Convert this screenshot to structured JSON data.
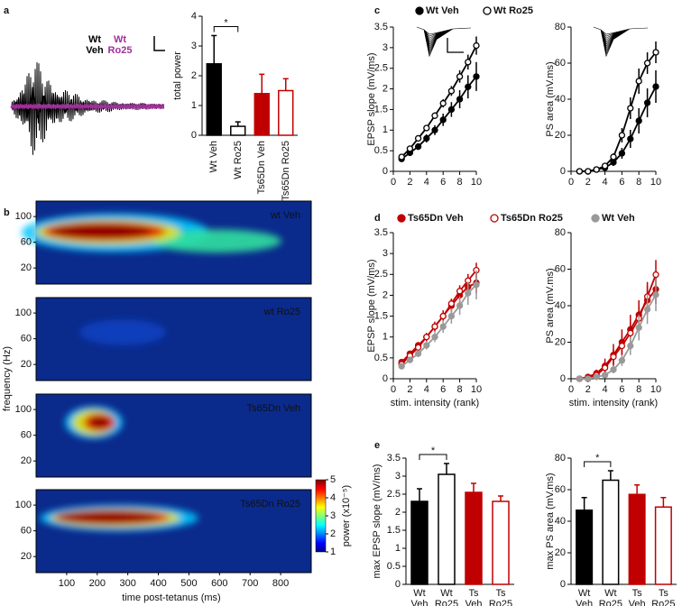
{
  "panel_labels": [
    "a",
    "b",
    "c",
    "d",
    "e"
  ],
  "chart_data": [
    {
      "type": "trace",
      "series": [
        {
          "name": "Wt Veh",
          "color": "#000000"
        },
        {
          "name": "Wt Ro25",
          "color": "#a0309a"
        }
      ]
    },
    {
      "type": "bar",
      "ylabel": "total power",
      "categories": [
        "Wt Veh",
        "Wt Ro25",
        "Ts65Dn Veh",
        "Ts65Dn Ro25"
      ],
      "values": [
        2.4,
        0.3,
        1.4,
        1.5
      ],
      "errors": [
        0.95,
        0.15,
        0.65,
        0.4
      ],
      "colors": [
        "#000000",
        "#000000",
        "#c00000",
        "#c00000"
      ],
      "fills": [
        "#000000",
        "#ffffff",
        "#c00000",
        "#ffffff"
      ],
      "ylim": [
        0,
        4
      ],
      "yticks": [
        0,
        1,
        2,
        3,
        4
      ],
      "annotation": "*"
    },
    {
      "type": "heatmap",
      "panel_titles": [
        "wt Veh",
        "wt Ro25",
        "Ts65Dn Veh",
        "Ts65Dn Ro25"
      ],
      "xlabel": "time post-tetanus (ms)",
      "ylabel": "frequency (Hz)",
      "xlim": [
        0,
        900
      ],
      "xticks": [
        100,
        200,
        300,
        400,
        500,
        600,
        700,
        800
      ],
      "ylim": [
        -5,
        124
      ],
      "yticks": [
        20,
        60,
        100
      ],
      "colorbar": {
        "label": "power (x10⁻⁵)",
        "lim": [
          1,
          5
        ],
        "ticks": [
          1,
          2,
          3,
          4,
          5
        ]
      }
    },
    {
      "type": "line",
      "ylabel": "EPSP slope (mV/ms)",
      "x": [
        1,
        2,
        3,
        4,
        5,
        6,
        7,
        8,
        9,
        10
      ],
      "xlim": [
        0,
        10
      ],
      "xticks": [
        0,
        2,
        4,
        6,
        8,
        10
      ],
      "ylim": [
        0,
        3.5
      ],
      "yticks": [
        0,
        0.5,
        1,
        1.5,
        2,
        2.5,
        3,
        3.5
      ],
      "series": [
        {
          "name": "Wt Veh",
          "color": "#000000",
          "marker": "filled",
          "values": [
            0.3,
            0.45,
            0.6,
            0.8,
            1.0,
            1.25,
            1.5,
            1.75,
            2.05,
            2.3
          ],
          "errors": [
            0.05,
            0.06,
            0.08,
            0.1,
            0.12,
            0.15,
            0.18,
            0.22,
            0.28,
            0.35
          ]
        },
        {
          "name": "Wt Ro25",
          "color": "#000000",
          "marker": "open",
          "values": [
            0.35,
            0.55,
            0.8,
            1.05,
            1.35,
            1.65,
            1.95,
            2.3,
            2.65,
            3.05
          ],
          "errors": [
            0.04,
            0.05,
            0.06,
            0.07,
            0.08,
            0.1,
            0.12,
            0.15,
            0.18,
            0.22
          ]
        }
      ]
    },
    {
      "type": "line",
      "ylabel": "PS area (mV.ms)",
      "x": [
        1,
        2,
        3,
        4,
        5,
        6,
        7,
        8,
        9,
        10
      ],
      "xlim": [
        0,
        10
      ],
      "xticks": [
        0,
        2,
        4,
        6,
        8,
        10
      ],
      "ylim": [
        0,
        80
      ],
      "yticks": [
        0,
        20,
        40,
        60,
        80
      ],
      "series": [
        {
          "color": "#000000",
          "marker": "filled",
          "values": [
            0,
            0,
            1,
            2,
            5,
            10,
            18,
            28,
            38,
            47
          ],
          "errors": [
            0,
            0,
            0.5,
            1,
            2,
            3,
            5,
            7,
            8,
            9
          ]
        },
        {
          "color": "#000000",
          "marker": "open",
          "values": [
            0,
            0,
            1,
            3,
            8,
            20,
            35,
            50,
            60,
            66
          ],
          "errors": [
            0,
            0,
            0.5,
            1,
            2,
            4,
            6,
            7,
            6,
            6
          ]
        }
      ]
    },
    {
      "type": "line",
      "ylabel": "EPSP slope (mV/ms)",
      "xlabel": "stim. intensity (rank)",
      "x": [
        1,
        2,
        3,
        4,
        5,
        6,
        7,
        8,
        9,
        10
      ],
      "xlim": [
        0,
        10
      ],
      "xticks": [
        0,
        2,
        4,
        6,
        8,
        10
      ],
      "ylim": [
        0,
        3.5
      ],
      "yticks": [
        0,
        0.5,
        1,
        1.5,
        2,
        2.5,
        3,
        3.5
      ],
      "series": [
        {
          "name": "Ts65Dn Veh",
          "color": "#c00000",
          "marker": "filled",
          "values": [
            0.4,
            0.6,
            0.8,
            1.0,
            1.25,
            1.5,
            1.75,
            2.0,
            2.2,
            2.3
          ],
          "errors": [
            0.05,
            0.06,
            0.08,
            0.1,
            0.12,
            0.14,
            0.16,
            0.2,
            0.22,
            0.25
          ]
        },
        {
          "name": "Ts65Dn Ro25",
          "color": "#c00000",
          "marker": "open",
          "values": [
            0.35,
            0.55,
            0.75,
            1.0,
            1.25,
            1.5,
            1.8,
            2.1,
            2.35,
            2.6
          ],
          "errors": [
            0.04,
            0.05,
            0.06,
            0.07,
            0.08,
            0.1,
            0.12,
            0.14,
            0.16,
            0.18
          ]
        },
        {
          "name": "Wt Veh",
          "color": "#999999",
          "marker": "filled",
          "values": [
            0.3,
            0.45,
            0.6,
            0.8,
            1.0,
            1.25,
            1.5,
            1.75,
            2.05,
            2.25
          ],
          "errors": [
            0.05,
            0.06,
            0.08,
            0.1,
            0.12,
            0.15,
            0.18,
            0.22,
            0.28,
            0.35
          ]
        }
      ]
    },
    {
      "type": "line",
      "ylabel": "PS area (mV.ms)",
      "xlabel": "stim. intensity (rank)",
      "x": [
        1,
        2,
        3,
        4,
        5,
        6,
        7,
        8,
        9,
        10
      ],
      "xlim": [
        0,
        10
      ],
      "xticks": [
        0,
        2,
        4,
        6,
        8,
        10
      ],
      "ylim": [
        0,
        80
      ],
      "yticks": [
        0,
        20,
        40,
        60,
        80
      ],
      "series": [
        {
          "color": "#c00000",
          "marker": "filled",
          "values": [
            0,
            1,
            3,
            7,
            13,
            20,
            27,
            35,
            43,
            49
          ],
          "errors": [
            0,
            1,
            2,
            4,
            6,
            7,
            8,
            8,
            8,
            8
          ]
        },
        {
          "color": "#c00000",
          "marker": "open",
          "values": [
            0,
            0,
            2,
            6,
            12,
            18,
            25,
            33,
            45,
            57
          ],
          "errors": [
            0,
            1,
            2,
            3,
            4,
            5,
            6,
            7,
            8,
            8
          ]
        },
        {
          "color": "#999999",
          "marker": "filled",
          "values": [
            0,
            0,
            1,
            2,
            5,
            10,
            18,
            28,
            38,
            46
          ],
          "errors": [
            0,
            0,
            0.5,
            1,
            2,
            3,
            5,
            7,
            8,
            9
          ]
        }
      ]
    },
    {
      "type": "bar",
      "ylabel": "max EPSP slope (mV/ms)",
      "categories": [
        "Wt Veh",
        "Wt Ro25",
        "Ts Veh",
        "Ts Ro25"
      ],
      "values": [
        2.3,
        3.05,
        2.55,
        2.3
      ],
      "errors": [
        0.35,
        0.3,
        0.25,
        0.15
      ],
      "colors": [
        "#000000",
        "#000000",
        "#c00000",
        "#c00000"
      ],
      "fills": [
        "#000000",
        "#ffffff",
        "#c00000",
        "#ffffff"
      ],
      "ylim": [
        0,
        3.5
      ],
      "yticks": [
        0,
        0.5,
        1,
        1.5,
        2,
        2.5,
        3,
        3.5
      ],
      "annotation": "*"
    },
    {
      "type": "bar",
      "ylabel": "max PS area (mV.ms)",
      "categories": [
        "Wt Veh",
        "Wt Ro25",
        "Ts Veh",
        "Ts Ro25"
      ],
      "values": [
        47,
        66,
        57,
        49
      ],
      "errors": [
        8,
        6,
        6,
        6
      ],
      "colors": [
        "#000000",
        "#000000",
        "#c00000",
        "#c00000"
      ],
      "fills": [
        "#000000",
        "#ffffff",
        "#c00000",
        "#ffffff"
      ],
      "ylim": [
        0,
        80
      ],
      "yticks": [
        0,
        20,
        40,
        60,
        80
      ],
      "annotation": "*"
    }
  ]
}
